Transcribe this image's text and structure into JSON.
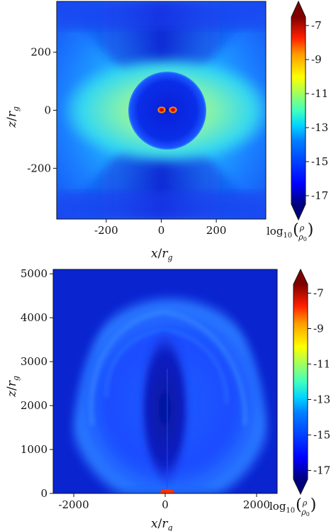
{
  "chart_data": [
    {
      "type": "heatmap",
      "title": "",
      "xlabel": "x/r_g",
      "ylabel": "z/r_g",
      "xlim": [
        -380,
        380
      ],
      "ylim": [
        -375,
        375
      ],
      "xticks": [
        -200,
        0,
        200
      ],
      "xtick_labels": [
        "-200",
        "0",
        "200"
      ],
      "yticks": [
        -200,
        0,
        200
      ],
      "ytick_labels": [
        "-200",
        "0",
        "200"
      ],
      "color_quantity": "log10(rho/rho_0)",
      "colorbar": {
        "range": [
          -17.5,
          -6.5
        ],
        "ticks": [
          -7,
          -9,
          -11,
          -13,
          -15,
          -17
        ],
        "tick_labels": [
          "-7",
          "-9",
          "-11",
          "-13",
          "-15",
          "-17"
        ],
        "label": "log10(ρ/ρ0)",
        "extend": "both",
        "colormap": "jet"
      },
      "features": {
        "inner_sphere_radius": 130,
        "inner_sphere_log_density": -16.5,
        "background_log_density": -15.2,
        "equatorial_torus_log_density": -12.6,
        "core_log_density": -7.2
      }
    },
    {
      "type": "heatmap",
      "title": "",
      "xlabel": "x/r_g",
      "ylabel": "z/r_g",
      "xlim": [
        -2450,
        2450
      ],
      "ylim": [
        0,
        5100
      ],
      "xticks": [
        -2000,
        0,
        2000
      ],
      "xtick_labels": [
        "-2000",
        "0",
        "2000"
      ],
      "yticks": [
        0,
        1000,
        2000,
        3000,
        4000,
        5000
      ],
      "ytick_labels": [
        "0",
        "1000",
        "2000",
        "3000",
        "4000",
        "5000"
      ],
      "color_quantity": "log10(rho/rho_0)",
      "colorbar": {
        "range": [
          -17.5,
          -6.5
        ],
        "ticks": [
          -7,
          -9,
          -11,
          -13,
          -15,
          -17
        ],
        "tick_labels": [
          "-7",
          "-9",
          "-11",
          "-13",
          "-15",
          "-17"
        ],
        "label": "log10(ρ/ρ0)",
        "extend": "both",
        "colormap": "jet"
      },
      "features": {
        "ambient_log_density": -16.6,
        "cocoon_log_density": -14.8,
        "jet_cavity_log_density": -16.9,
        "base_log_density": -10.5
      }
    }
  ],
  "labels": {
    "cb_prefix": "log",
    "cb_sub": "10",
    "rho": "ρ",
    "rho0": "ρ",
    "rho0_sub": "0",
    "x_main": "x",
    "z_main": "z",
    "r_main": "r",
    "g_sub": "g"
  },
  "colors": {
    "jet": [
      "#00007f",
      "#0000ff",
      "#007fff",
      "#00ffff",
      "#7fff7f",
      "#ffff00",
      "#ff7f00",
      "#ff0000",
      "#7f0000"
    ]
  }
}
